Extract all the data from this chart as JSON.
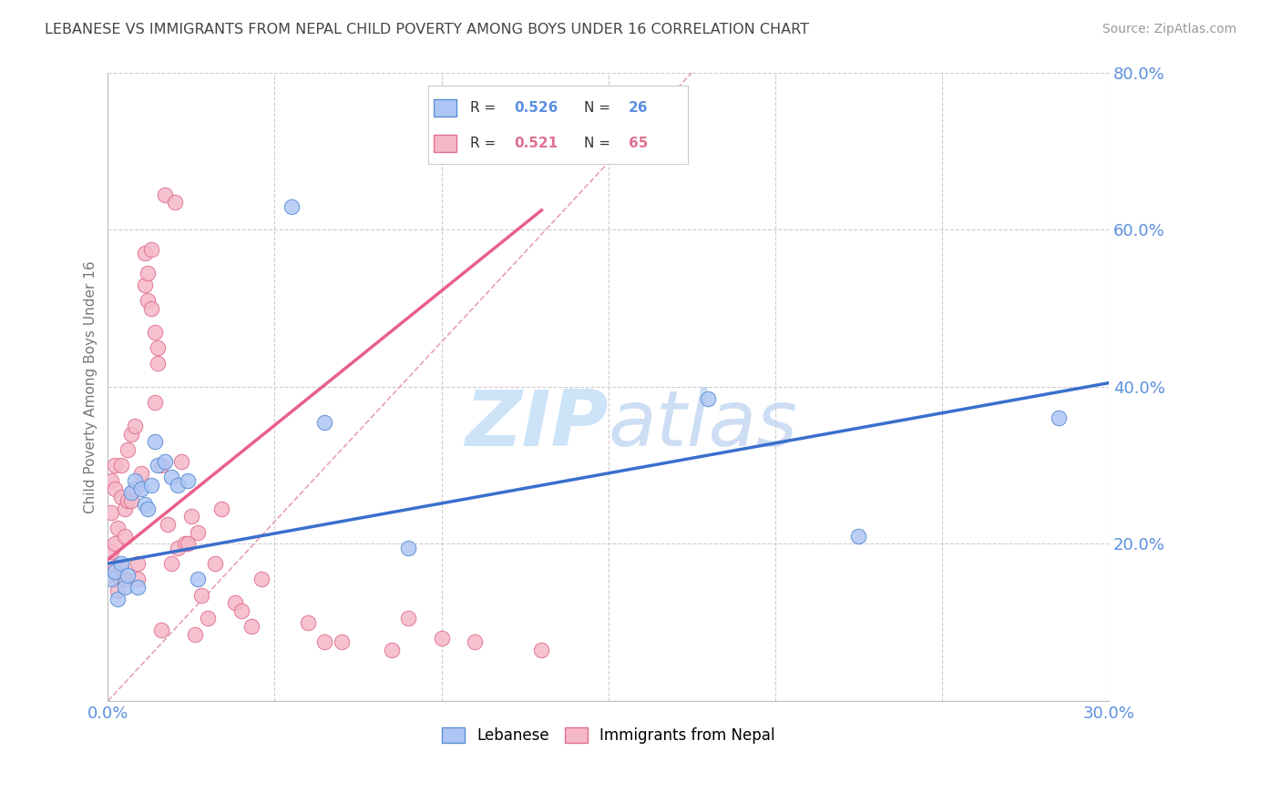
{
  "title": "LEBANESE VS IMMIGRANTS FROM NEPAL CHILD POVERTY AMONG BOYS UNDER 16 CORRELATION CHART",
  "source": "Source: ZipAtlas.com",
  "ylabel": "Child Poverty Among Boys Under 16",
  "blue_R": 0.526,
  "blue_N": 26,
  "pink_R": 0.521,
  "pink_N": 65,
  "blue_color": "#AEC6F5",
  "pink_color": "#F5B8C8",
  "blue_edge_color": "#5B8FD4",
  "pink_edge_color": "#E07090",
  "blue_line_color": "#3A6FCC",
  "pink_line_color": "#E8608A",
  "diag_line_color": "#E8A0B8",
  "watermark_zip": "ZIP",
  "watermark_atlas": "atlas",
  "background_color": "#FFFFFF",
  "grid_color": "#CCCCCC",
  "axis_label_color": "#5B8FE0",
  "title_color": "#444444",
  "source_color": "#999999",
  "xlim": [
    0.0,
    0.3
  ],
  "ylim": [
    0.0,
    0.8
  ],
  "blue_scatter_x": [
    0.001,
    0.002,
    0.003,
    0.004,
    0.005,
    0.006,
    0.007,
    0.008,
    0.009,
    0.01,
    0.011,
    0.012,
    0.013,
    0.014,
    0.015,
    0.017,
    0.019,
    0.021,
    0.024,
    0.027,
    0.055,
    0.065,
    0.09,
    0.18,
    0.225,
    0.285
  ],
  "blue_scatter_y": [
    0.155,
    0.165,
    0.13,
    0.175,
    0.145,
    0.16,
    0.265,
    0.28,
    0.145,
    0.27,
    0.25,
    0.245,
    0.275,
    0.33,
    0.3,
    0.305,
    0.285,
    0.275,
    0.28,
    0.155,
    0.63,
    0.355,
    0.195,
    0.385,
    0.21,
    0.36
  ],
  "pink_scatter_x": [
    0.001,
    0.001,
    0.001,
    0.001,
    0.002,
    0.002,
    0.002,
    0.002,
    0.003,
    0.003,
    0.003,
    0.004,
    0.004,
    0.004,
    0.005,
    0.005,
    0.005,
    0.006,
    0.006,
    0.007,
    0.007,
    0.008,
    0.008,
    0.009,
    0.009,
    0.01,
    0.011,
    0.011,
    0.012,
    0.012,
    0.013,
    0.013,
    0.014,
    0.014,
    0.015,
    0.015,
    0.016,
    0.016,
    0.017,
    0.018,
    0.019,
    0.02,
    0.021,
    0.022,
    0.023,
    0.024,
    0.025,
    0.026,
    0.027,
    0.028,
    0.03,
    0.032,
    0.034,
    0.038,
    0.04,
    0.043,
    0.046,
    0.06,
    0.065,
    0.07,
    0.085,
    0.09,
    0.1,
    0.11,
    0.13
  ],
  "pink_scatter_y": [
    0.16,
    0.19,
    0.24,
    0.28,
    0.17,
    0.2,
    0.27,
    0.3,
    0.14,
    0.22,
    0.16,
    0.26,
    0.3,
    0.17,
    0.155,
    0.21,
    0.245,
    0.32,
    0.255,
    0.34,
    0.255,
    0.35,
    0.27,
    0.155,
    0.175,
    0.29,
    0.57,
    0.53,
    0.51,
    0.545,
    0.575,
    0.5,
    0.38,
    0.47,
    0.45,
    0.43,
    0.3,
    0.09,
    0.645,
    0.225,
    0.175,
    0.635,
    0.195,
    0.305,
    0.2,
    0.2,
    0.235,
    0.085,
    0.215,
    0.135,
    0.105,
    0.175,
    0.245,
    0.125,
    0.115,
    0.095,
    0.155,
    0.1,
    0.075,
    0.075,
    0.065,
    0.105,
    0.08,
    0.075,
    0.065
  ],
  "blue_line_x0": 0.0,
  "blue_line_y0": 0.175,
  "blue_line_x1": 0.3,
  "blue_line_y1": 0.405,
  "pink_line_x0": 0.0,
  "pink_line_y0": 0.18,
  "pink_line_x1": 0.13,
  "pink_line_y1": 0.625
}
